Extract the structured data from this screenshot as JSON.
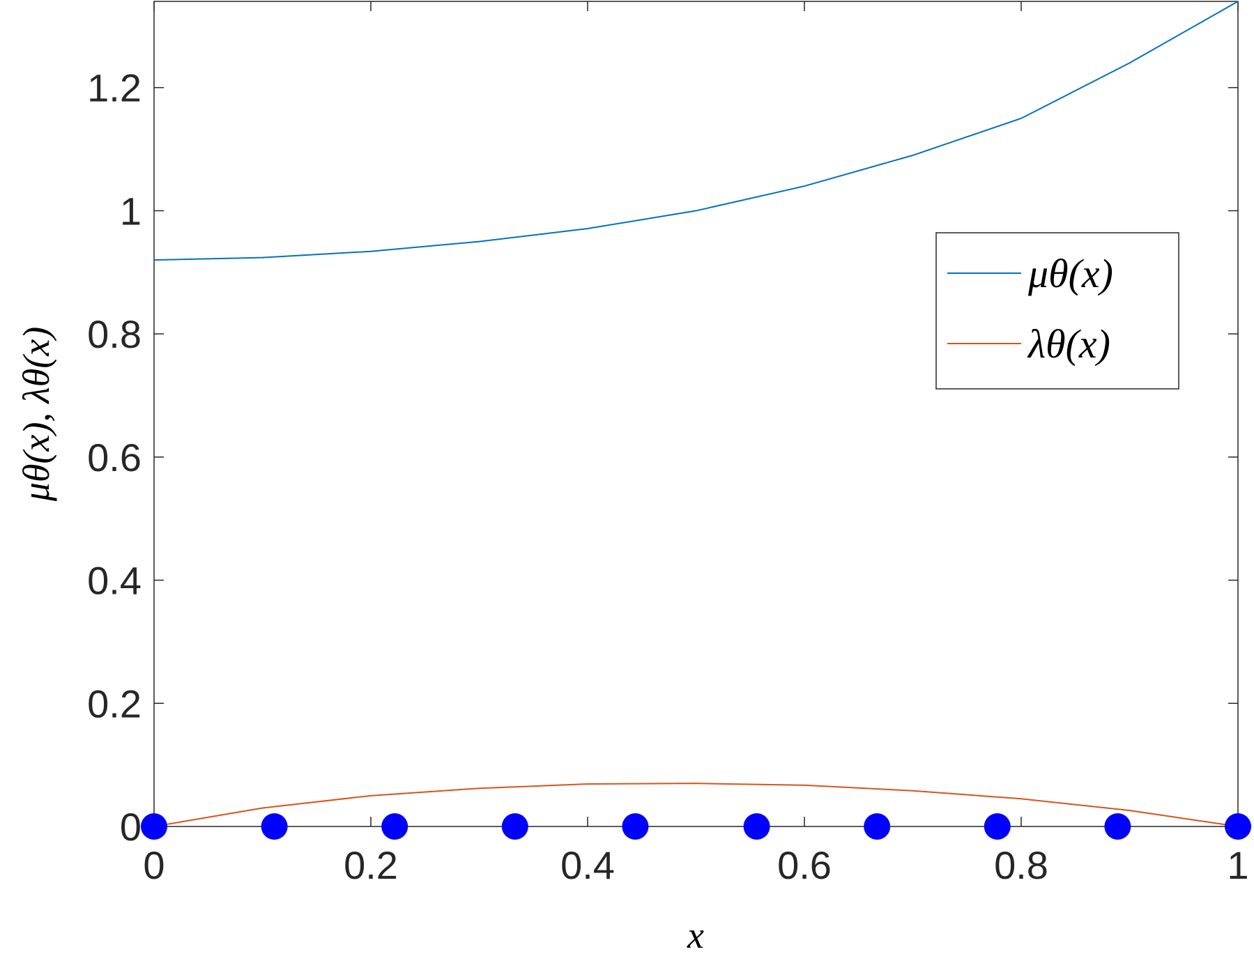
{
  "chart_data": {
    "type": "line",
    "x_label": "x",
    "y_label": "μθ(x), λθ(x)",
    "xlim": [
      0,
      1
    ],
    "ylim": [
      0,
      1.34
    ],
    "xticks": [
      0,
      0.2,
      0.4,
      0.6,
      0.8,
      1
    ],
    "yticks": [
      0,
      0.2,
      0.4,
      0.6,
      0.8,
      1,
      1.2
    ],
    "grid": false,
    "legend": "upper right",
    "x": [
      0,
      0.1,
      0.2,
      0.3,
      0.4,
      0.5,
      0.6,
      0.7,
      0.8,
      0.9,
      1
    ],
    "series": [
      {
        "name": "μθ(x)",
        "color": "#0072bd",
        "values": [
          0.92,
          0.924,
          0.934,
          0.95,
          0.971,
          1.0,
          1.04,
          1.09,
          1.15,
          1.24,
          1.34
        ]
      },
      {
        "name": "λθ(x)",
        "color": "#d95319",
        "values": [
          0,
          0.03,
          0.05,
          0.062,
          0.069,
          0.07,
          0.067,
          0.058,
          0.045,
          0.026,
          0
        ]
      }
    ],
    "points": {
      "color": "#0000ff",
      "x": [
        0,
        0.111,
        0.222,
        0.333,
        0.444,
        0.556,
        0.667,
        0.778,
        0.889,
        1
      ],
      "values": [
        0,
        0,
        0,
        0,
        0,
        0,
        0,
        0,
        0,
        0
      ]
    }
  }
}
